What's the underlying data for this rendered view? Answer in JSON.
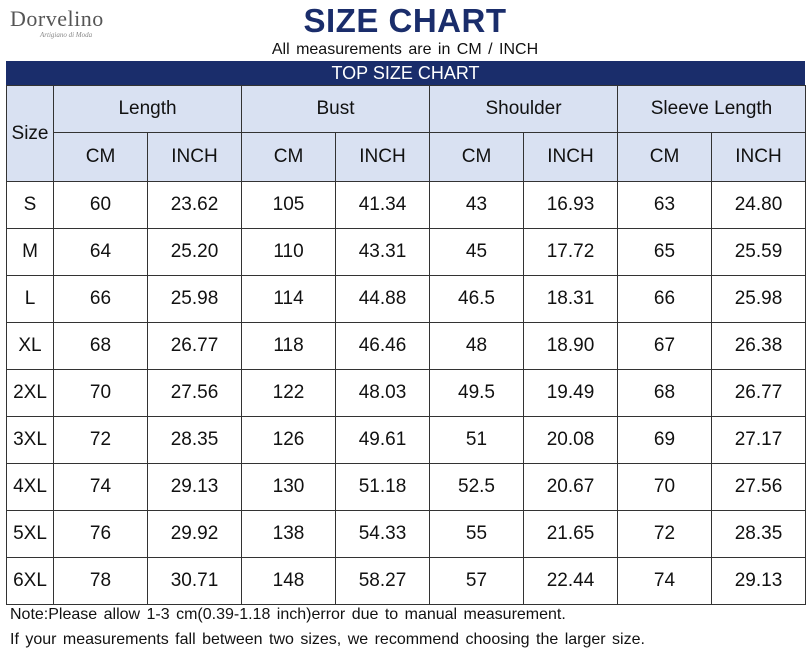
{
  "brand": {
    "name": "Dorvelino",
    "tagline": "Artigiano di Moda"
  },
  "title": "SIZE CHART",
  "subtitle": "All measurements are in CM / INCH",
  "banner": "TOP SIZE CHART",
  "table": {
    "size_header": "Size",
    "groups": [
      "Length",
      "Bust",
      "Shoulder",
      "Sleeve Length"
    ],
    "units": [
      "CM",
      "INCH",
      "CM",
      "INCH",
      "CM",
      "INCH",
      "CM",
      "INCH"
    ],
    "rows": [
      {
        "size": "S",
        "values": [
          "60",
          "23.62",
          "105",
          "41.34",
          "43",
          "16.93",
          "63",
          "24.80"
        ]
      },
      {
        "size": "M",
        "values": [
          "64",
          "25.20",
          "110",
          "43.31",
          "45",
          "17.72",
          "65",
          "25.59"
        ]
      },
      {
        "size": "L",
        "values": [
          "66",
          "25.98",
          "114",
          "44.88",
          "46.5",
          "18.31",
          "66",
          "25.98"
        ]
      },
      {
        "size": "XL",
        "values": [
          "68",
          "26.77",
          "118",
          "46.46",
          "48",
          "18.90",
          "67",
          "26.38"
        ]
      },
      {
        "size": "2XL",
        "values": [
          "70",
          "27.56",
          "122",
          "48.03",
          "49.5",
          "19.49",
          "68",
          "26.77"
        ]
      },
      {
        "size": "3XL",
        "values": [
          "72",
          "28.35",
          "126",
          "49.61",
          "51",
          "20.08",
          "69",
          "27.17"
        ]
      },
      {
        "size": "4XL",
        "values": [
          "74",
          "29.13",
          "130",
          "51.18",
          "52.5",
          "20.67",
          "70",
          "27.56"
        ]
      },
      {
        "size": "5XL",
        "values": [
          "76",
          "29.92",
          "138",
          "54.33",
          "55",
          "21.65",
          "72",
          "28.35"
        ]
      },
      {
        "size": "6XL",
        "values": [
          "78",
          "30.71",
          "148",
          "58.27",
          "57",
          "22.44",
          "74",
          "29.13"
        ]
      }
    ]
  },
  "notes": [
    "Note:Please allow 1-3 cm(0.39-1.18 inch)error due to manual measurement.",
    "If your measurements fall between two sizes, we recommend choosing the larger size."
  ],
  "colors": {
    "navy": "#1a2d6b",
    "header_fill": "#d9e1f2"
  }
}
